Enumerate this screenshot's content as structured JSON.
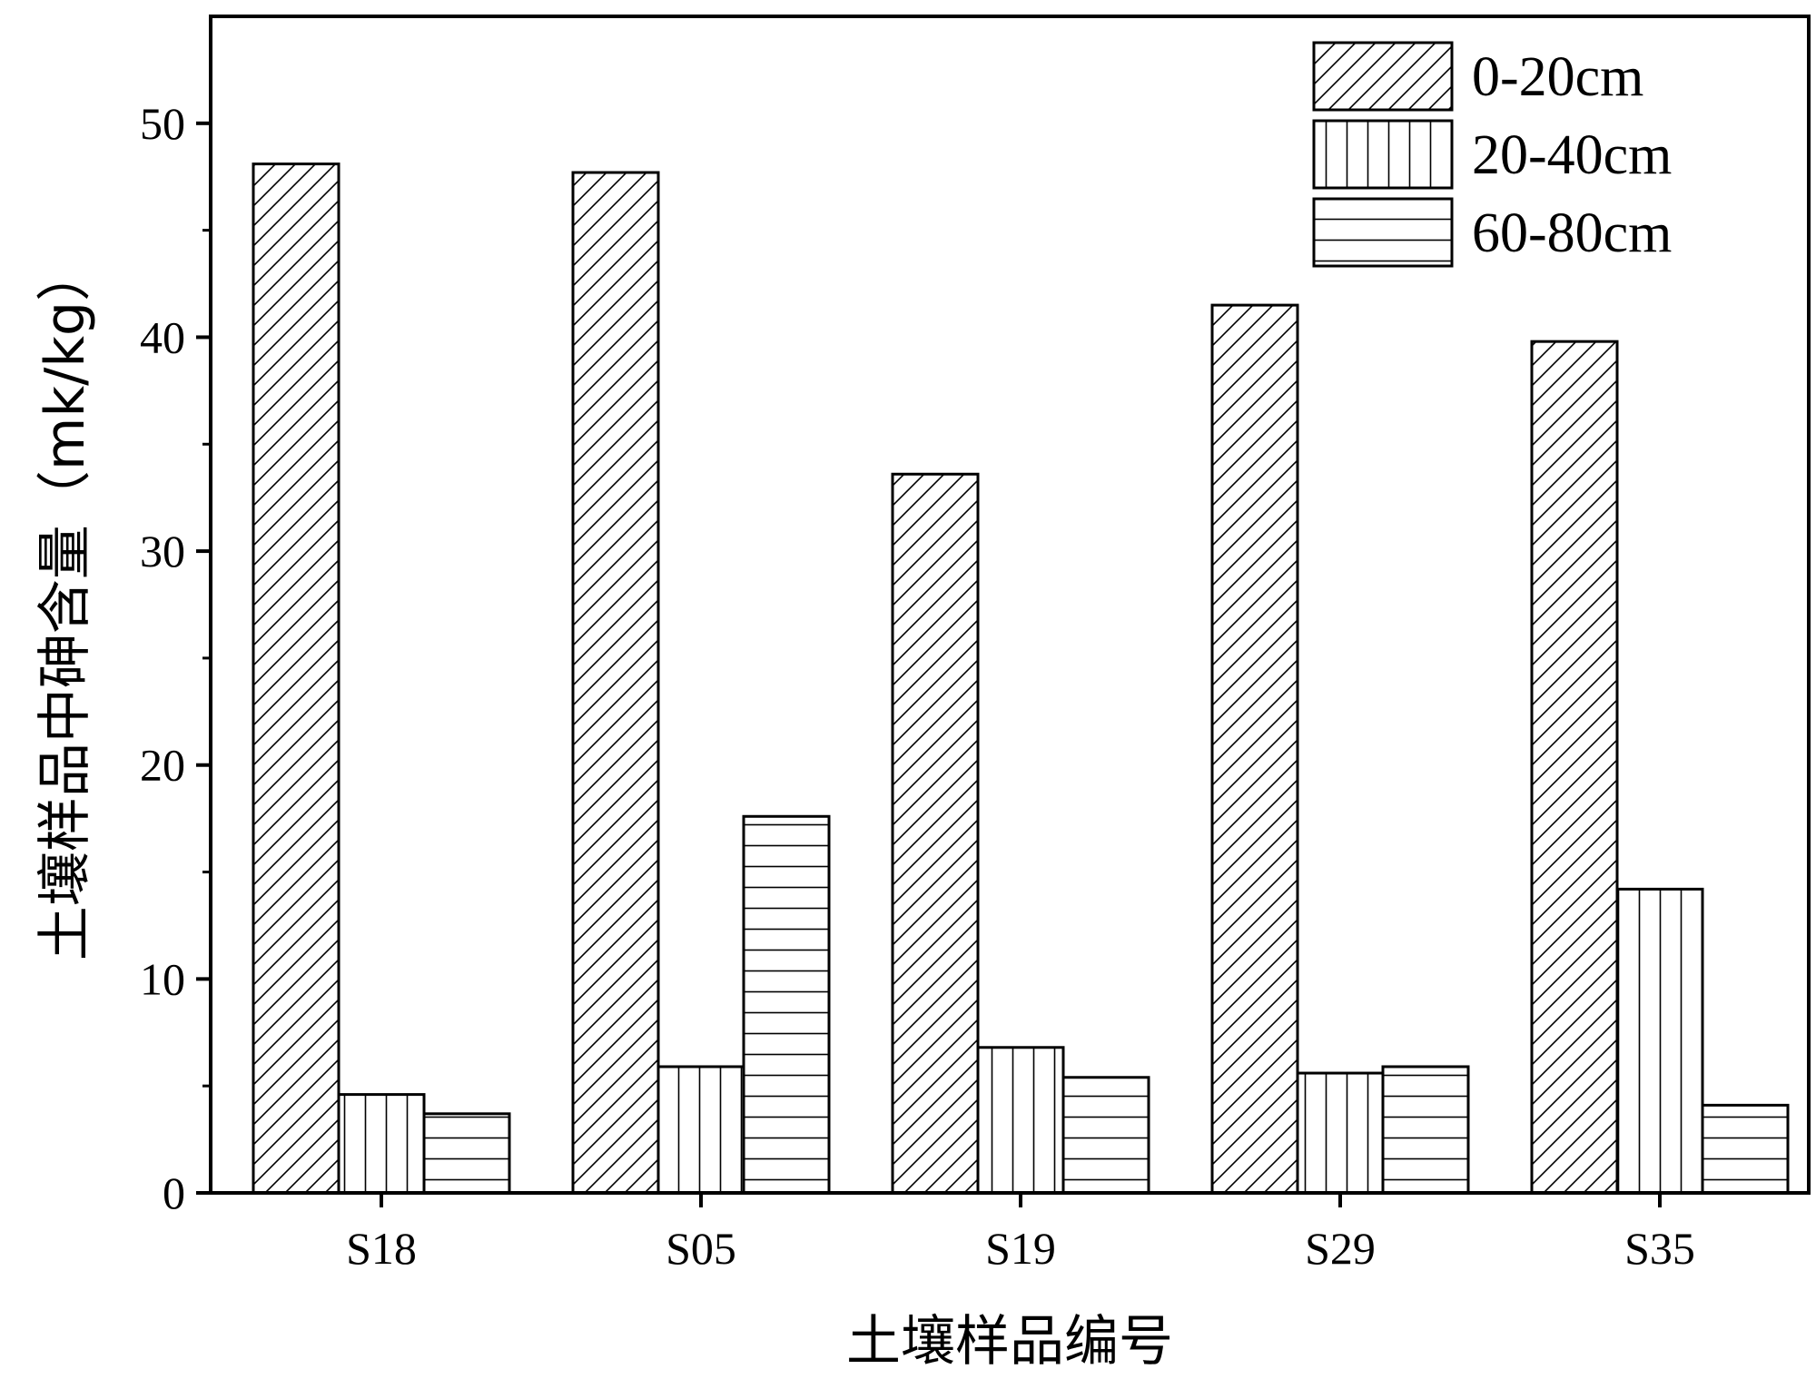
{
  "chart_data": {
    "type": "bar",
    "title": "",
    "xlabel": "土壤样品编号",
    "ylabel": "土壤样品中砷含量（mk/kg）",
    "categories": [
      "S18",
      "S05",
      "S19",
      "S29",
      "S35"
    ],
    "series": [
      {
        "name": "0-20cm",
        "pattern": "diagonal",
        "values": [
          48.1,
          47.7,
          33.6,
          41.5,
          39.8
        ]
      },
      {
        "name": "20-40cm",
        "pattern": "vertical",
        "values": [
          4.6,
          5.9,
          6.8,
          5.6,
          14.2
        ]
      },
      {
        "name": "60-80cm",
        "pattern": "horizontal",
        "values": [
          3.7,
          17.6,
          5.4,
          5.9,
          4.1
        ]
      }
    ],
    "ylim": [
      0,
      55
    ],
    "yticks": [
      0,
      10,
      20,
      30,
      40,
      50
    ],
    "grid": false,
    "legend_position": "top-right",
    "colors": {
      "stroke": "#000000",
      "fill": "#ffffff"
    }
  }
}
